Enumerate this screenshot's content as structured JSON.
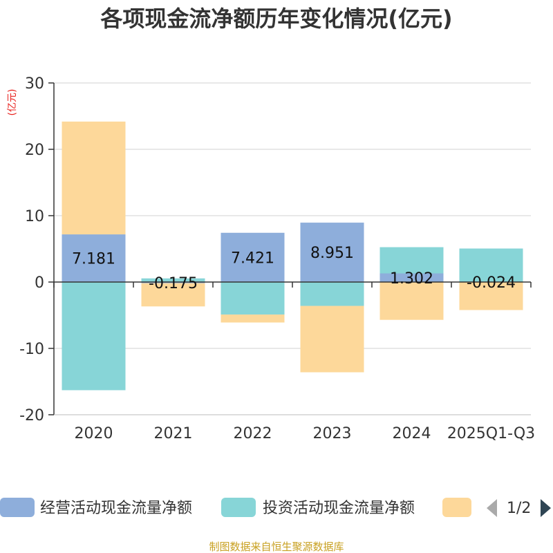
{
  "chart_data": {
    "type": "bar",
    "stacked": true,
    "title": "各项现金流净额历年变化情况(亿元)",
    "unit_label": "(亿元)",
    "categories": [
      "2020",
      "2021",
      "2022",
      "2023",
      "2024",
      "2025Q1-Q3"
    ],
    "ylim": [
      -20,
      30
    ],
    "yticks": [
      "30",
      "20",
      "10",
      "0",
      "-10",
      "-20"
    ],
    "series": [
      {
        "name": "经营活动现金流量净额",
        "color": "#8eaedb",
        "values": [
          7.181,
          -0.175,
          7.421,
          8.951,
          1.302,
          -0.024
        ],
        "labels": [
          "7.181",
          "-0.175",
          "7.421",
          "8.951",
          "1.302",
          "-0.024"
        ]
      },
      {
        "name": "投资活动现金流量净额",
        "color": "#87d5d7",
        "values": [
          -16.3,
          0.55,
          -4.9,
          -3.6,
          3.95,
          5.05
        ]
      },
      {
        "name": "",
        "color": "#fdd89a",
        "values": [
          17.0,
          -3.5,
          -1.2,
          -10.0,
          -5.7,
          -4.2
        ]
      }
    ]
  },
  "legend": {
    "items": [
      "经营活动现金流量净额",
      "投资活动现金流量净额",
      ""
    ],
    "page": "1/2"
  },
  "source": "制图数据来自恒生聚源数据库"
}
